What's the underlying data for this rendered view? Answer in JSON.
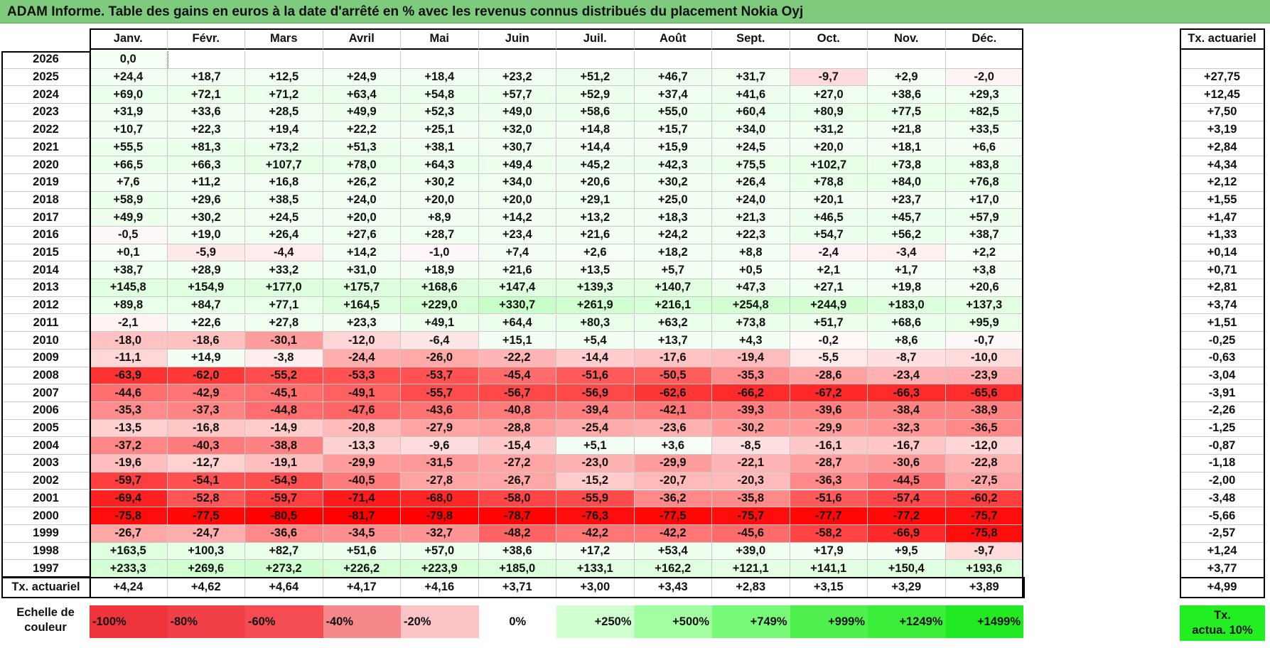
{
  "title": "ADAM Informe. Table des gains en euros à la date d'arrêté en % avec les revenus connus distribués du placement Nokia Oyj",
  "months": [
    "Janv.",
    "Févr.",
    "Mars",
    "Avril",
    "Mai",
    "Juin",
    "Juil.",
    "Août",
    "Sept.",
    "Oct.",
    "Nov.",
    "Déc."
  ],
  "rate_header": "Tx. actuariel",
  "rows": [
    {
      "year": "2026",
      "values": [
        "0,0",
        "",
        "",
        "",
        "",
        "",
        "",
        "",
        "",
        "",
        "",
        ""
      ],
      "rate": ""
    },
    {
      "year": "2025",
      "values": [
        "+24,4",
        "+18,7",
        "+12,5",
        "+24,9",
        "+18,4",
        "+23,2",
        "+51,2",
        "+46,7",
        "+31,7",
        "-9,7",
        "+2,9",
        "-2,0"
      ],
      "rate": "+27,75"
    },
    {
      "year": "2024",
      "values": [
        "+69,0",
        "+72,1",
        "+71,2",
        "+63,4",
        "+54,8",
        "+57,7",
        "+52,9",
        "+37,4",
        "+41,6",
        "+27,0",
        "+38,6",
        "+29,3"
      ],
      "rate": "+12,45"
    },
    {
      "year": "2023",
      "values": [
        "+31,9",
        "+33,6",
        "+28,5",
        "+49,9",
        "+52,3",
        "+49,0",
        "+58,6",
        "+55,0",
        "+60,4",
        "+80,9",
        "+77,5",
        "+82,5"
      ],
      "rate": "+7,50"
    },
    {
      "year": "2022",
      "values": [
        "+10,7",
        "+22,3",
        "+19,4",
        "+22,2",
        "+25,1",
        "+32,0",
        "+14,8",
        "+15,7",
        "+34,0",
        "+31,2",
        "+21,8",
        "+33,5"
      ],
      "rate": "+3,19"
    },
    {
      "year": "2021",
      "values": [
        "+55,5",
        "+81,3",
        "+73,2",
        "+51,3",
        "+38,1",
        "+30,7",
        "+14,4",
        "+15,9",
        "+24,5",
        "+20,0",
        "+18,1",
        "+6,6"
      ],
      "rate": "+2,84"
    },
    {
      "year": "2020",
      "values": [
        "+66,5",
        "+66,3",
        "+107,7",
        "+78,0",
        "+64,3",
        "+49,4",
        "+45,2",
        "+42,3",
        "+75,5",
        "+102,7",
        "+73,8",
        "+83,8"
      ],
      "rate": "+4,34"
    },
    {
      "year": "2019",
      "values": [
        "+7,6",
        "+11,2",
        "+16,8",
        "+26,2",
        "+30,2",
        "+34,0",
        "+20,6",
        "+30,2",
        "+26,4",
        "+78,8",
        "+84,0",
        "+76,8"
      ],
      "rate": "+2,12"
    },
    {
      "year": "2018",
      "values": [
        "+58,9",
        "+29,6",
        "+38,5",
        "+24,0",
        "+20,0",
        "+20,0",
        "+29,1",
        "+25,0",
        "+24,0",
        "+20,1",
        "+23,7",
        "+17,0"
      ],
      "rate": "+1,55"
    },
    {
      "year": "2017",
      "values": [
        "+49,9",
        "+30,2",
        "+24,5",
        "+20,0",
        "+8,9",
        "+14,2",
        "+13,2",
        "+18,3",
        "+21,3",
        "+46,5",
        "+45,7",
        "+57,9"
      ],
      "rate": "+1,47"
    },
    {
      "year": "2016",
      "values": [
        "-0,5",
        "+19,0",
        "+26,4",
        "+27,6",
        "+28,7",
        "+23,4",
        "+21,6",
        "+24,2",
        "+22,3",
        "+54,7",
        "+56,2",
        "+38,7"
      ],
      "rate": "+1,33"
    },
    {
      "year": "2015",
      "values": [
        "+0,1",
        "-5,9",
        "-4,4",
        "+14,2",
        "-1,0",
        "+7,4",
        "+2,6",
        "+18,2",
        "+8,8",
        "-2,4",
        "-3,4",
        "+2,2"
      ],
      "rate": "+0,14"
    },
    {
      "year": "2014",
      "values": [
        "+38,7",
        "+28,9",
        "+33,2",
        "+31,0",
        "+18,9",
        "+21,6",
        "+13,5",
        "+5,7",
        "+0,5",
        "+2,1",
        "+1,7",
        "+3,8"
      ],
      "rate": "+0,71"
    },
    {
      "year": "2013",
      "values": [
        "+145,8",
        "+154,9",
        "+177,0",
        "+175,7",
        "+168,6",
        "+147,4",
        "+139,3",
        "+140,7",
        "+47,3",
        "+27,1",
        "+19,8",
        "+20,6"
      ],
      "rate": "+2,81"
    },
    {
      "year": "2012",
      "values": [
        "+89,8",
        "+84,7",
        "+77,1",
        "+164,5",
        "+229,0",
        "+330,7",
        "+261,9",
        "+216,1",
        "+254,8",
        "+244,9",
        "+183,0",
        "+137,3"
      ],
      "rate": "+3,74"
    },
    {
      "year": "2011",
      "values": [
        "-2,1",
        "+22,6",
        "+27,8",
        "+23,3",
        "+49,1",
        "+64,4",
        "+80,3",
        "+63,2",
        "+73,8",
        "+51,7",
        "+68,6",
        "+95,9"
      ],
      "rate": "+1,51"
    },
    {
      "year": "2010",
      "values": [
        "-18,0",
        "-18,6",
        "-30,1",
        "-12,0",
        "-6,4",
        "+15,1",
        "+5,4",
        "+13,7",
        "+4,3",
        "-0,2",
        "+8,6",
        "-0,7"
      ],
      "rate": "-0,25"
    },
    {
      "year": "2009",
      "values": [
        "-11,1",
        "+14,9",
        "-3,8",
        "-24,4",
        "-26,0",
        "-22,2",
        "-14,4",
        "-17,6",
        "-19,4",
        "-5,5",
        "-8,7",
        "-10,0"
      ],
      "rate": "-0,63"
    },
    {
      "year": "2008",
      "values": [
        "-63,9",
        "-62,0",
        "-55,2",
        "-53,3",
        "-53,7",
        "-45,4",
        "-51,6",
        "-50,5",
        "-35,3",
        "-28,6",
        "-23,4",
        "-23,9"
      ],
      "rate": "-3,04"
    },
    {
      "year": "2007",
      "values": [
        "-44,6",
        "-42,9",
        "-45,1",
        "-49,1",
        "-55,7",
        "-56,7",
        "-56,9",
        "-62,6",
        "-66,2",
        "-67,2",
        "-66,3",
        "-65,6"
      ],
      "rate": "-3,91"
    },
    {
      "year": "2006",
      "values": [
        "-35,3",
        "-37,3",
        "-44,8",
        "-47,6",
        "-43,6",
        "-40,8",
        "-39,4",
        "-42,1",
        "-39,3",
        "-39,6",
        "-38,4",
        "-38,9"
      ],
      "rate": "-2,26"
    },
    {
      "year": "2005",
      "values": [
        "-13,5",
        "-16,8",
        "-14,9",
        "-20,8",
        "-27,9",
        "-28,8",
        "-25,4",
        "-23,6",
        "-30,2",
        "-29,9",
        "-32,3",
        "-36,5"
      ],
      "rate": "-1,25"
    },
    {
      "year": "2004",
      "values": [
        "-37,2",
        "-40,3",
        "-38,8",
        "-13,3",
        "-9,6",
        "-15,4",
        "+5,1",
        "+3,6",
        "-8,5",
        "-16,1",
        "-16,7",
        "-12,0"
      ],
      "rate": "-0,87"
    },
    {
      "year": "2003",
      "values": [
        "-19,6",
        "-12,7",
        "-19,1",
        "-29,9",
        "-31,5",
        "-27,2",
        "-23,0",
        "-29,9",
        "-22,1",
        "-28,7",
        "-30,6",
        "-22,8"
      ],
      "rate": "-1,18"
    },
    {
      "year": "2002",
      "values": [
        "-59,7",
        "-54,1",
        "-54,9",
        "-40,5",
        "-27,8",
        "-26,7",
        "-15,2",
        "-20,7",
        "-20,3",
        "-36,3",
        "-44,5",
        "-27,5"
      ],
      "rate": "-2,00"
    },
    {
      "year": "2001",
      "values": [
        "-69,4",
        "-52,8",
        "-59,7",
        "-71,4",
        "-68,0",
        "-58,0",
        "-55,9",
        "-36,2",
        "-35,8",
        "-51,6",
        "-57,4",
        "-60,2"
      ],
      "rate": "-3,48"
    },
    {
      "year": "2000",
      "values": [
        "-75,8",
        "-77,5",
        "-80,5",
        "-81,7",
        "-79,8",
        "-78,7",
        "-76,3",
        "-77,5",
        "-75,7",
        "-77,7",
        "-77,2",
        "-75,7"
      ],
      "rate": "-5,66"
    },
    {
      "year": "1999",
      "values": [
        "-26,7",
        "-24,7",
        "-36,6",
        "-34,5",
        "-32,7",
        "-48,2",
        "-42,2",
        "-42,2",
        "-45,6",
        "-58,2",
        "-66,9",
        "-75,8"
      ],
      "rate": "-2,57"
    },
    {
      "year": "1998",
      "values": [
        "+163,5",
        "+100,3",
        "+82,7",
        "+51,6",
        "+57,0",
        "+38,6",
        "+17,2",
        "+53,4",
        "+39,0",
        "+17,9",
        "+9,5",
        "-9,7"
      ],
      "rate": "+1,24"
    },
    {
      "year": "1997",
      "values": [
        "+233,3",
        "+269,6",
        "+273,2",
        "+226,2",
        "+223,9",
        "+185,0",
        "+133,1",
        "+162,2",
        "+121,1",
        "+141,1",
        "+150,4",
        "+193,6"
      ],
      "rate": "+3,77"
    }
  ],
  "footer": {
    "label": "Tx. actuariel",
    "values": [
      "+4,24",
      "+4,62",
      "+4,64",
      "+4,17",
      "+4,16",
      "+3,71",
      "+3,00",
      "+3,43",
      "+2,83",
      "+3,15",
      "+3,29",
      "+3,89"
    ],
    "rate": "+4,99"
  },
  "legend": {
    "label_line1": "Echelle de",
    "label_line2": "couleur",
    "items": [
      {
        "text": "-100%",
        "color": "#f0343c",
        "align": "left"
      },
      {
        "text": "-80%",
        "color": "#f24048",
        "align": "left"
      },
      {
        "text": "-60%",
        "color": "#f44c52",
        "align": "left"
      },
      {
        "text": "-40%",
        "color": "#f6888c",
        "align": "left"
      },
      {
        "text": "-20%",
        "color": "#fac4c6",
        "align": "left"
      },
      {
        "text": "0%",
        "color": "#ffffff",
        "align": "center"
      },
      {
        "text": "+250%",
        "color": "#d0ffd0",
        "align": "right"
      },
      {
        "text": "+500%",
        "color": "#a2ffa2",
        "align": "right"
      },
      {
        "text": "+749%",
        "color": "#78fa78",
        "align": "right"
      },
      {
        "text": "+999%",
        "color": "#4ef04e",
        "align": "right"
      },
      {
        "text": "+1249%",
        "color": "#3aee3a",
        "align": "right"
      },
      {
        "text": "+1499%",
        "color": "#22ea22",
        "align": "right"
      }
    ],
    "tx_line1": "Tx.",
    "tx_line2": "actua. 10%",
    "tx_color": "#22ee22"
  }
}
